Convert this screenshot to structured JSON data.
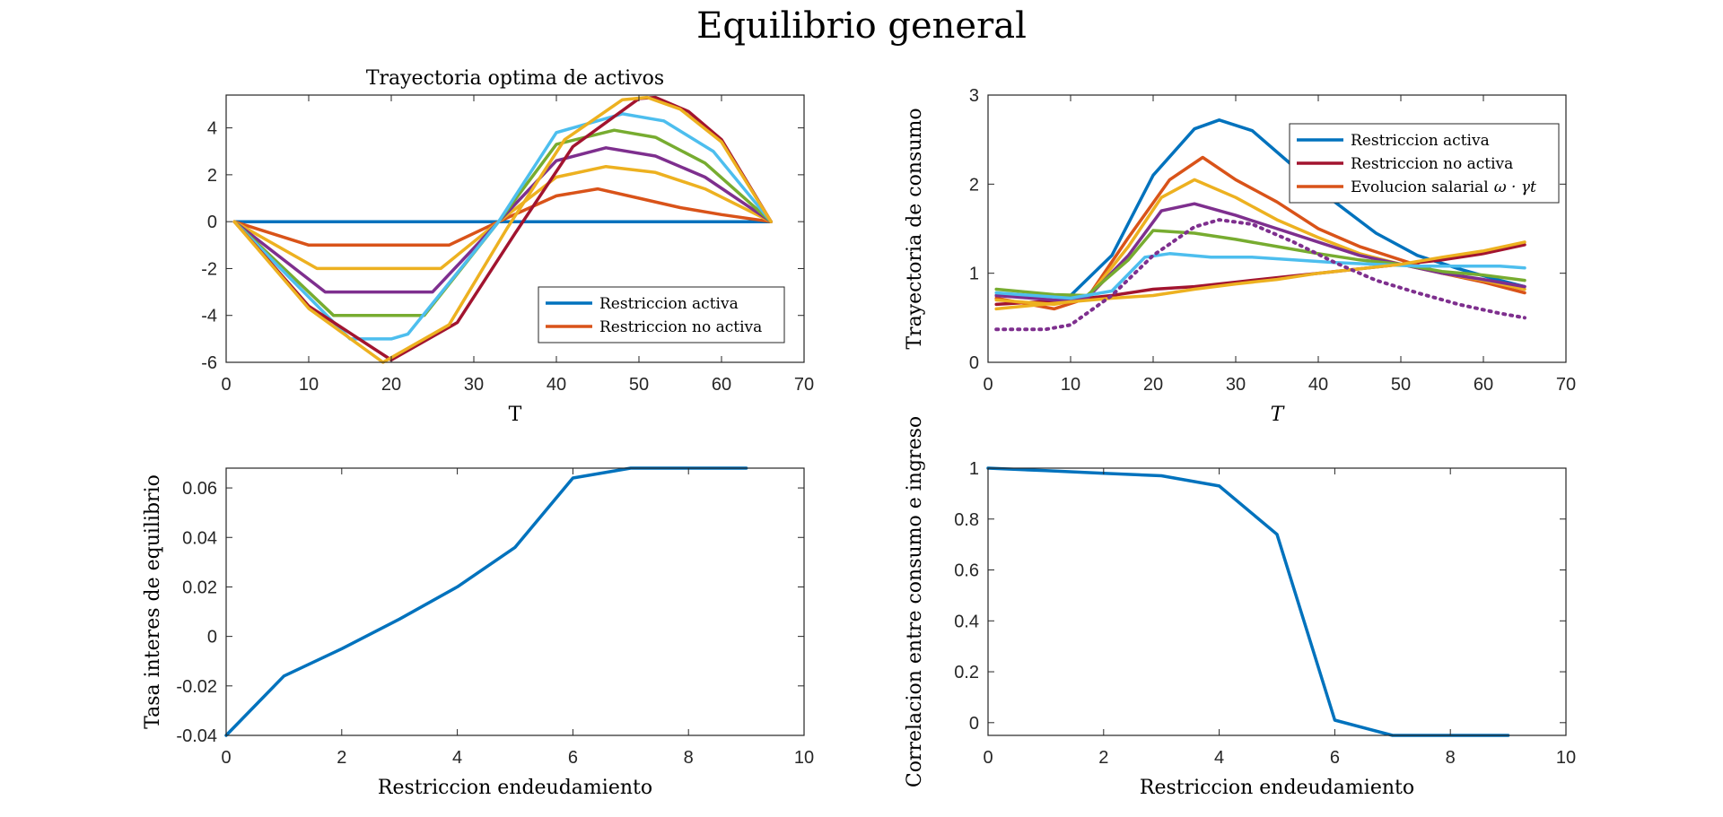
{
  "figure": {
    "title": "Equilibrio general"
  },
  "chart_data": [
    {
      "type": "line",
      "id": "activos",
      "title": "Trayectoria optima de activos",
      "xlabel": "T",
      "ylabel": "",
      "xlim": [
        0,
        70
      ],
      "ylim": [
        -6,
        5.4
      ],
      "xticks": [
        0,
        10,
        20,
        30,
        40,
        50,
        60,
        70
      ],
      "yticks": [
        -6,
        -4,
        -2,
        0,
        2,
        4
      ],
      "grid": false,
      "legend": {
        "position": "bottom-right",
        "entries": [
          "Restriccion activa",
          "Restriccion no activa"
        ]
      },
      "series": [
        {
          "color": "#0072BD",
          "x": [
            1,
            66
          ],
          "y": [
            0,
            0
          ]
        },
        {
          "color": "#D95319",
          "x": [
            1,
            10,
            20,
            27,
            33,
            40,
            45,
            50,
            55,
            60,
            66
          ],
          "y": [
            0,
            -1,
            -1,
            -1,
            0,
            1.1,
            1.4,
            1.0,
            0.6,
            0.3,
            0
          ]
        },
        {
          "color": "#EDB120",
          "x": [
            1,
            11,
            20,
            26,
            33,
            40,
            46,
            52,
            58,
            66
          ],
          "y": [
            0,
            -2,
            -2,
            -2,
            0,
            1.9,
            2.35,
            2.1,
            1.4,
            0
          ]
        },
        {
          "color": "#7E2F8E",
          "x": [
            1,
            12,
            20,
            25,
            33,
            40,
            46,
            52,
            58,
            66
          ],
          "y": [
            0,
            -3,
            -3,
            -3,
            0,
            2.6,
            3.15,
            2.8,
            1.9,
            0
          ]
        },
        {
          "color": "#77AC30",
          "x": [
            1,
            13,
            20,
            24,
            33,
            40,
            47,
            52,
            58,
            66
          ],
          "y": [
            0,
            -4,
            -4,
            -4,
            0,
            3.3,
            3.9,
            3.6,
            2.5,
            0
          ]
        },
        {
          "color": "#4DBEEE",
          "x": [
            1,
            15,
            20,
            22,
            33,
            40,
            48,
            53,
            59,
            66
          ],
          "y": [
            0,
            -5,
            -5,
            -4.8,
            0,
            3.8,
            4.6,
            4.3,
            3.0,
            0
          ]
        },
        {
          "color": "#A2142F",
          "x": [
            1,
            10,
            20,
            28,
            35,
            42,
            50,
            52,
            56,
            60,
            66
          ],
          "y": [
            0,
            -3.6,
            -5.9,
            -4.3,
            -0.5,
            3.2,
            5.25,
            5.3,
            4.7,
            3.5,
            0
          ]
        },
        {
          "color": "#EDB120",
          "x": [
            1,
            10,
            19,
            27,
            34,
            41,
            48,
            51,
            55,
            60,
            66
          ],
          "y": [
            0,
            -3.7,
            -6.0,
            -4.4,
            -0.3,
            3.5,
            5.2,
            5.3,
            4.8,
            3.4,
            0
          ]
        }
      ]
    },
    {
      "type": "line",
      "id": "consumo",
      "title": "",
      "xlabel": "T",
      "ylabel": "Trayectoria de consumo",
      "xlim": [
        0,
        70
      ],
      "ylim": [
        0,
        3
      ],
      "xticks": [
        0,
        10,
        20,
        30,
        40,
        50,
        60,
        70
      ],
      "yticks": [
        0,
        1,
        2,
        3
      ],
      "grid": false,
      "legend": {
        "position": "top-right",
        "entries": [
          "Restriccion activa",
          "Restriccion no activa",
          "Evolucion salarial"
        ],
        "math_suffix": "ω · γt"
      },
      "series": [
        {
          "color": "#0072BD",
          "x": [
            1,
            10,
            15,
            20,
            25,
            28,
            32,
            37,
            42,
            47,
            52,
            57,
            62,
            65
          ],
          "y": [
            0.75,
            0.75,
            1.2,
            2.1,
            2.62,
            2.72,
            2.6,
            2.2,
            1.8,
            1.45,
            1.2,
            1.05,
            0.92,
            0.85
          ]
        },
        {
          "color": "#A2142F",
          "x": [
            1,
            10,
            15,
            20,
            25,
            30,
            35,
            40,
            45,
            50,
            55,
            60,
            65
          ],
          "y": [
            0.65,
            0.7,
            0.75,
            0.82,
            0.85,
            0.9,
            0.95,
            1.0,
            1.05,
            1.1,
            1.15,
            1.22,
            1.32
          ]
        },
        {
          "color": "#D95319",
          "x": [
            1,
            8,
            12,
            17,
            22,
            26,
            30,
            35,
            40,
            45,
            50,
            55,
            60,
            65
          ],
          "y": [
            0.72,
            0.6,
            0.72,
            1.4,
            2.05,
            2.3,
            2.05,
            1.8,
            1.5,
            1.3,
            1.15,
            1.0,
            0.9,
            0.78
          ]
        },
        {
          "color": "#EDB120",
          "x": [
            1,
            8,
            12,
            17,
            21,
            25,
            30,
            35,
            40,
            45,
            50,
            55,
            60,
            65
          ],
          "y": [
            0.7,
            0.65,
            0.72,
            1.3,
            1.85,
            2.05,
            1.85,
            1.6,
            1.4,
            1.22,
            1.1,
            1.0,
            0.92,
            0.82
          ]
        },
        {
          "color": "#7E2F8E",
          "x": [
            1,
            8,
            12,
            17,
            21,
            25,
            30,
            35,
            40,
            45,
            50,
            55,
            60,
            65
          ],
          "y": [
            0.75,
            0.7,
            0.72,
            1.2,
            1.7,
            1.78,
            1.65,
            1.5,
            1.35,
            1.2,
            1.1,
            1.0,
            0.93,
            0.85
          ]
        },
        {
          "color": "#77AC30",
          "x": [
            1,
            8,
            12,
            17,
            20,
            25,
            30,
            35,
            40,
            45,
            50,
            55,
            60,
            65
          ],
          "y": [
            0.82,
            0.76,
            0.75,
            1.15,
            1.48,
            1.45,
            1.38,
            1.3,
            1.22,
            1.15,
            1.1,
            1.02,
            0.98,
            0.92
          ]
        },
        {
          "color": "#4DBEEE",
          "x": [
            1,
            10,
            15,
            19,
            22,
            27,
            32,
            37,
            42,
            47,
            52,
            57,
            62,
            65
          ],
          "y": [
            0.78,
            0.72,
            0.8,
            1.18,
            1.22,
            1.18,
            1.18,
            1.15,
            1.12,
            1.1,
            1.08,
            1.08,
            1.08,
            1.06
          ]
        },
        {
          "color": "#EDB120",
          "x": [
            1,
            10,
            15,
            20,
            25,
            30,
            35,
            40,
            45,
            50,
            55,
            60,
            65
          ],
          "y": [
            0.6,
            0.68,
            0.72,
            0.75,
            0.82,
            0.88,
            0.93,
            1.0,
            1.05,
            1.1,
            1.18,
            1.25,
            1.35
          ]
        },
        {
          "color": "#7E2F8E",
          "dashed": true,
          "x": [
            1,
            7,
            10,
            15,
            20,
            25,
            28,
            32,
            37,
            42,
            47,
            52,
            57,
            62,
            65
          ],
          "y": [
            0.37,
            0.37,
            0.42,
            0.75,
            1.2,
            1.52,
            1.6,
            1.55,
            1.35,
            1.12,
            0.92,
            0.78,
            0.65,
            0.55,
            0.5
          ]
        }
      ]
    },
    {
      "type": "line",
      "id": "tasa",
      "title": "",
      "xlabel": "Restriccion endeudamiento",
      "ylabel": "Tasa interes de equilibrio",
      "xlim": [
        0,
        10
      ],
      "ylim": [
        -0.04,
        0.068
      ],
      "xticks": [
        0,
        2,
        4,
        6,
        8,
        10
      ],
      "yticks": [
        -0.04,
        -0.02,
        0,
        0.02,
        0.04,
        0.06
      ],
      "ytick_labels": [
        "-0.04",
        "-0.02",
        "0",
        "0.02",
        "0.04",
        "0.06"
      ],
      "grid": false,
      "series": [
        {
          "color": "#0072BD",
          "x": [
            0,
            1,
            2,
            3,
            4,
            5,
            6,
            7,
            8,
            9
          ],
          "y": [
            -0.04,
            -0.016,
            -0.005,
            0.007,
            0.02,
            0.036,
            0.064,
            0.068,
            0.068,
            0.068
          ]
        }
      ]
    },
    {
      "type": "line",
      "id": "correlacion",
      "title": "",
      "xlabel": "Restriccion endeudamiento",
      "ylabel": "Correlacion entre consumo e ingreso",
      "xlim": [
        0,
        10
      ],
      "ylim": [
        -0.05,
        1
      ],
      "xticks": [
        0,
        2,
        4,
        6,
        8,
        10
      ],
      "yticks": [
        0,
        0.2,
        0.4,
        0.6,
        0.8,
        1
      ],
      "ytick_labels": [
        "0",
        "0.2",
        "0.4",
        "0.6",
        "0.8",
        "1"
      ],
      "grid": false,
      "series": [
        {
          "color": "#0072BD",
          "x": [
            0,
            1,
            2,
            3,
            4,
            5,
            6,
            7,
            8,
            9
          ],
          "y": [
            1.0,
            0.99,
            0.98,
            0.97,
            0.93,
            0.74,
            0.01,
            -0.05,
            -0.05,
            -0.05
          ]
        }
      ]
    }
  ]
}
